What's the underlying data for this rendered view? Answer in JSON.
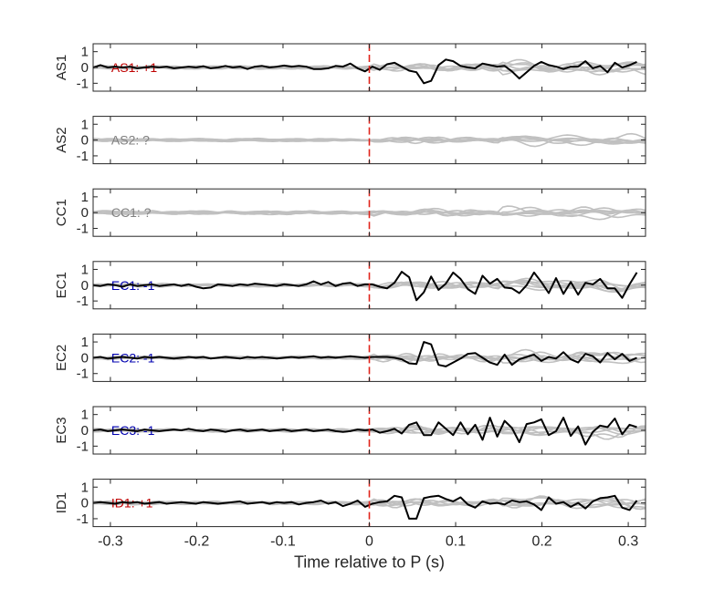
{
  "chart_data": {
    "type": "line",
    "xlabel": "Time relative to P (s)",
    "xlim": [
      -0.32,
      0.32
    ],
    "xticks": [
      -0.3,
      -0.2,
      -0.1,
      0,
      0.1,
      0.2,
      0.3
    ],
    "xtick_labels": [
      "-0.3",
      "-0.2",
      "-0.1",
      "0",
      "0.1",
      "0.2",
      "0.3"
    ],
    "ylim": [
      -1.5,
      1.5
    ],
    "yticks": [
      1,
      0,
      -1
    ],
    "ytick_labels": [
      "1",
      "0",
      "-1"
    ],
    "marker_time": 0,
    "colors": {
      "main": "#000000",
      "background": "#c0c0c0",
      "marker": "#e0241b",
      "positive": "#c00000",
      "negative": "#0000b0",
      "unknown": "#808080"
    },
    "panels": [
      {
        "ylabel": "AS1",
        "annotation": "AS1: +1",
        "polarity": "positive",
        "has_main": true,
        "main_y": [
          0,
          0.15,
          0,
          0.05,
          0,
          0.05,
          -0.05,
          0,
          0.05,
          0,
          0.05,
          -0.05,
          0,
          0.05,
          0,
          0.08,
          -0.05,
          0,
          0.1,
          0,
          0.05,
          -0.1,
          0.05,
          0.1,
          0,
          0.05,
          0.12,
          0.05,
          0.1,
          0.05,
          -0.1,
          -0.1,
          -0.05,
          0.1,
          0.05,
          0.25,
          -0.05,
          -0.25,
          0.05,
          -0.15,
          0.2,
          0.3,
          0.05,
          -0.2,
          -0.3,
          -1,
          -0.85,
          0.15,
          0.5,
          0.4,
          0.1,
          0,
          -0.05,
          0.25,
          0.15,
          0.05,
          0.1,
          -0.25,
          -0.7,
          -0.3,
          0.1,
          0.35,
          0.15,
          0.05,
          -0.1,
          0.05,
          0.05,
          0.4,
          -0.05,
          0.1,
          -0.3,
          0.3,
          0,
          0.15,
          0.35
        ]
      },
      {
        "ylabel": "AS2",
        "annotation": "AS2: ?",
        "polarity": "unknown",
        "has_main": false,
        "main_y": []
      },
      {
        "ylabel": "CC1",
        "annotation": "CC1: ?",
        "polarity": "unknown",
        "has_main": false,
        "main_y": []
      },
      {
        "ylabel": "EC1",
        "annotation": "EC1: -1",
        "polarity": "negative",
        "has_main": true,
        "main_y": [
          0,
          -0.05,
          0.05,
          0,
          -0.1,
          0.05,
          -0.05,
          0,
          0.05,
          -0.05,
          0,
          0.05,
          -0.05,
          0.05,
          -0.1,
          -0.2,
          -0.15,
          0.05,
          0,
          -0.05,
          0.05,
          0,
          0.1,
          0.05,
          0,
          -0.05,
          0.05,
          0,
          -0.05,
          0.05,
          0.25,
          0.05,
          0.2,
          -0.05,
          0.1,
          0.15,
          -0.05,
          0.05,
          0.05,
          -0.1,
          -0.2,
          0.15,
          0.85,
          0.5,
          -0.95,
          -0.45,
          0.55,
          -0.3,
          0.1,
          0.8,
          0.4,
          -0.25,
          -0.55,
          0.6,
          0.1,
          0.4,
          -0.15,
          -0.2,
          -0.5,
          0,
          0.8,
          0.2,
          -0.5,
          0.45,
          -0.55,
          0.2,
          -0.6,
          0.15,
          0.05,
          0.4,
          -0.2,
          -0.2,
          -0.8,
          0.05,
          0.8
        ]
      },
      {
        "ylabel": "EC2",
        "annotation": "EC2: -1",
        "polarity": "negative",
        "has_main": true,
        "main_y": [
          0,
          0.05,
          -0.05,
          0,
          0.05,
          0,
          -0.05,
          0.05,
          0,
          0.05,
          0,
          -0.05,
          0,
          0.05,
          0,
          0.05,
          -0.05,
          0,
          0.05,
          0,
          -0.05,
          0.05,
          0,
          0.05,
          0,
          -0.05,
          0,
          0.05,
          0,
          0.05,
          0.1,
          0,
          0.05,
          0,
          0.05,
          0.1,
          0.05,
          0,
          0.05,
          0.05,
          0.05,
          0,
          -0.1,
          -0.35,
          -0.4,
          1,
          0.85,
          -0.45,
          -0.55,
          -0.3,
          -0.05,
          0.25,
          0.3,
          0,
          -0.3,
          -0.45,
          0.2,
          -0.45,
          -0.1,
          0.05,
          0.2,
          -0.2,
          0.05,
          -0.05,
          0.35,
          -0.1,
          -0.3,
          0.25,
          0.1,
          -0.3,
          0.3,
          -0.1,
          0.25,
          -0.2,
          0
        ]
      },
      {
        "ylabel": "EC3",
        "annotation": "EC3: -1",
        "polarity": "negative",
        "has_main": true,
        "main_y": [
          0,
          0.05,
          -0.05,
          0,
          0.05,
          0,
          -0.05,
          0.05,
          0,
          -0.05,
          0,
          0.05,
          0,
          0.1,
          0,
          -0.05,
          0.05,
          0,
          -0.1,
          0,
          0.05,
          -0.05,
          0,
          0.05,
          -0.05,
          0,
          0.05,
          -0.05,
          0,
          0.05,
          -0.05,
          0,
          0.05,
          -0.05,
          -0.1,
          -0.05,
          0.05,
          0,
          0.05,
          -0.15,
          -0.05,
          0.1,
          -0.2,
          0.35,
          0.5,
          -0.3,
          -0.3,
          0.5,
          0.1,
          -0.3,
          0.5,
          -0.25,
          0.35,
          -0.6,
          0.8,
          -0.4,
          0.6,
          0.15,
          -0.75,
          0.4,
          0.5,
          0.7,
          -0.3,
          -0.05,
          0.8,
          -0.35,
          0.25,
          -0.9,
          -0.1,
          0.3,
          0.2,
          0.75,
          -0.25,
          0.35,
          0.2
        ]
      },
      {
        "ylabel": "ID1",
        "annotation": "ID1: +1",
        "polarity": "positive",
        "has_main": true,
        "main_y": [
          0,
          0.05,
          0,
          -0.05,
          0.05,
          0,
          0.05,
          -0.05,
          0,
          0.05,
          -0.05,
          0,
          0.05,
          0,
          -0.05,
          0.05,
          0,
          -0.05,
          0,
          0.05,
          0.1,
          -0.05,
          0,
          0.05,
          -0.05,
          0.05,
          0,
          0.05,
          -0.1,
          0,
          0.05,
          0.15,
          -0.05,
          0.05,
          -0.2,
          -0.05,
          0.15,
          -0.25,
          -0.05,
          0.05,
          0.1,
          0.45,
          0.35,
          -1,
          -1,
          0.3,
          0.4,
          0.45,
          0.25,
          0.1,
          0.35,
          -0.1,
          -0.3,
          0.1,
          -0.05,
          0,
          -0.1,
          0.15,
          0.05,
          0.1,
          -0.1,
          -0.45,
          0.35,
          -0.05,
          0.05,
          -0.25,
          0,
          -0.35,
          0.1,
          0.3,
          0.35,
          0.45,
          -0.3,
          -0.45,
          0.15
        ]
      }
    ]
  }
}
